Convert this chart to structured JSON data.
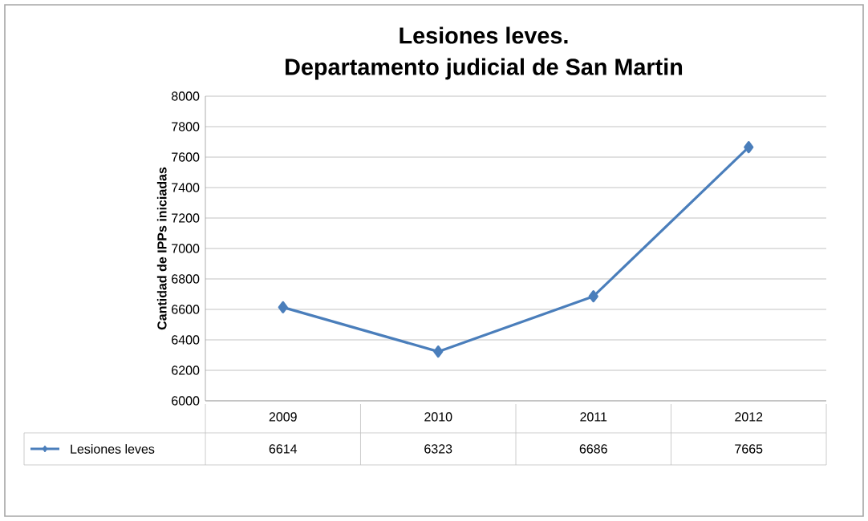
{
  "chart_data": {
    "type": "line",
    "title": "Lesiones leves.",
    "subtitle": "Departamento judicial de San Martin",
    "ylabel": "Cantidad de IPPs iniciadas",
    "categories": [
      "2009",
      "2010",
      "2011",
      "2012"
    ],
    "series": [
      {
        "name": "Lesiones leves",
        "color": "#4a7ebb",
        "values": [
          6614,
          6323,
          6686,
          7665
        ]
      }
    ],
    "ylim": [
      6000,
      8000
    ],
    "yticks": [
      6000,
      6200,
      6400,
      6600,
      6800,
      7000,
      7200,
      7400,
      7600,
      7800,
      8000
    ],
    "grid": "y",
    "marker": "diamond",
    "line_style": "solid",
    "legend": "bottom",
    "data_labels": true
  }
}
